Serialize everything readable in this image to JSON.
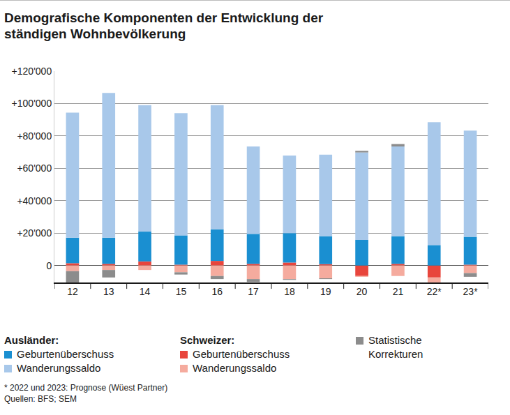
{
  "chart_data": {
    "type": "bar",
    "title": "Demografische Komponenten der Entwicklung der ständigen Wohnbevölkerung",
    "stacked": true,
    "grid": true,
    "categories": [
      "12",
      "13",
      "14",
      "15",
      "16",
      "17",
      "18",
      "19",
      "20",
      "21",
      "22*",
      "23*"
    ],
    "series": [
      {
        "group": "Ausländer:",
        "name": "Geburtenüberschuss",
        "color": "#1a8fd1",
        "values": [
          15800,
          16200,
          18400,
          18100,
          19500,
          18500,
          18200,
          17300,
          15800,
          17100,
          12600,
          17200
        ]
      },
      {
        "group": "Ausländer:",
        "name": "Wanderungssaldo",
        "color": "#a8c8ea",
        "values": [
          77200,
          89300,
          78100,
          75400,
          76700,
          54000,
          47900,
          50300,
          54000,
          55400,
          75800,
          65600
        ]
      },
      {
        "group": "Schweizer:",
        "name": "Geburtenüberschuss",
        "color": "#e8453c",
        "values": [
          1400,
          1000,
          2500,
          500,
          2800,
          1000,
          1800,
          800,
          -6500,
          1000,
          -7400,
          500
        ]
      },
      {
        "group": "Schweizer:",
        "name": "Wanderungssaldo",
        "color": "#f5ab9e",
        "values": [
          -3500,
          -2800,
          -2800,
          -4200,
          -6500,
          -8400,
          -8400,
          -7900,
          -500,
          -6500,
          -5100,
          -4700
        ]
      },
      {
        "name": "Statistische Korrekturen",
        "color": "#8c8c8c",
        "values": [
          -7000,
          -4600,
          0,
          -1400,
          -1900,
          -1800,
          -500,
          -500,
          1000,
          1500,
          -1900,
          -2300
        ]
      }
    ],
    "ylim": [
      -10500,
      120000
    ],
    "yticks": [
      {
        "value": 0,
        "label": "0"
      },
      {
        "value": 20000,
        "label": "+20'000"
      },
      {
        "value": 40000,
        "label": "+40'000"
      },
      {
        "value": 60000,
        "label": "+60'000"
      },
      {
        "value": 80000,
        "label": "+80'000"
      },
      {
        "value": 100000,
        "label": "+100'000"
      },
      {
        "value": 120000,
        "label": "+120'000"
      }
    ],
    "footnote": "* 2022 und 2023: Prognose (Wüest Partner)",
    "source": "Quellen: BFS; SEM"
  }
}
